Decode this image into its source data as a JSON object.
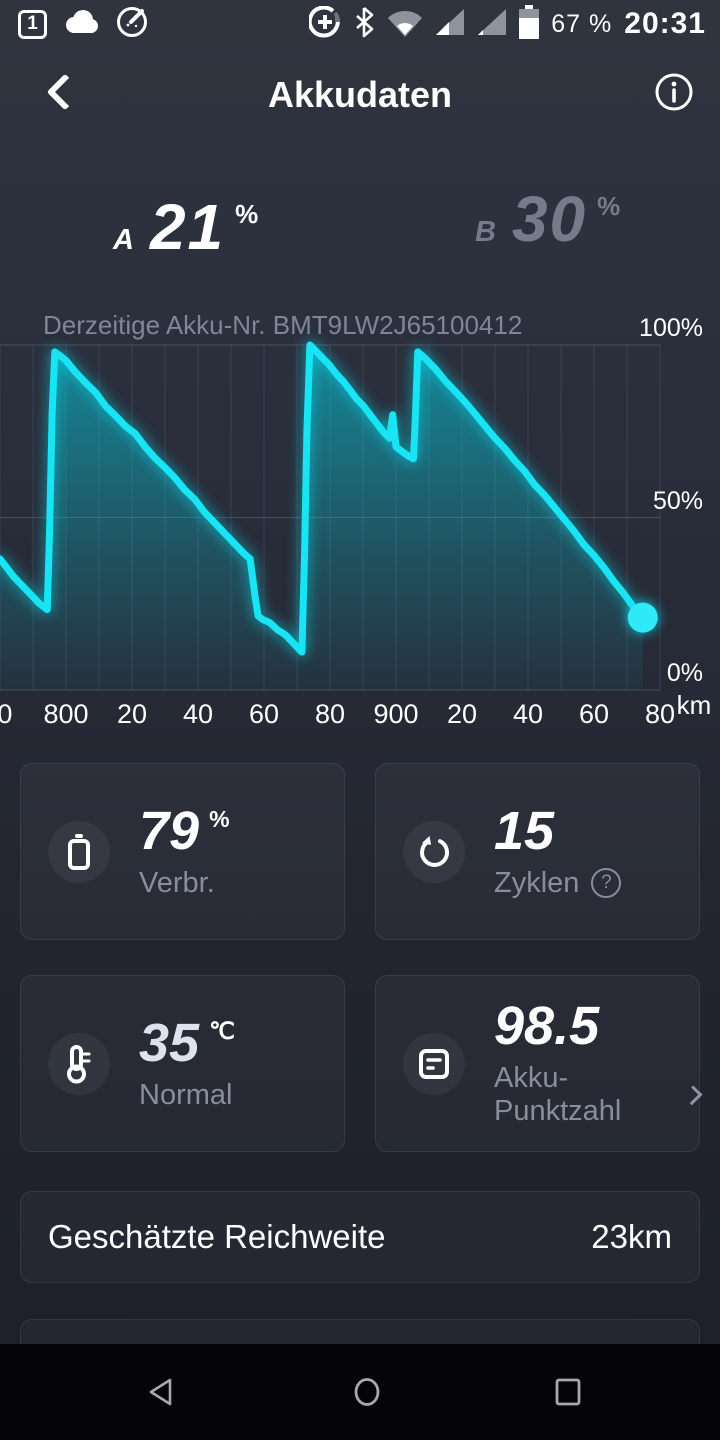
{
  "status_bar": {
    "notification_badge": "1",
    "battery_text": "67 %",
    "time": "20:31",
    "icons_left": [
      "event-badge-icon",
      "cloud-icon",
      "speedometer-icon"
    ],
    "icons_right": [
      "data-saver-icon",
      "bluetooth-icon",
      "wifi-icon",
      "signal-icon",
      "signal2-icon",
      "battery-status-icon"
    ]
  },
  "header": {
    "title": "Akkudaten"
  },
  "summary": {
    "a_label": "A",
    "a_value": "21",
    "a_unit": "%",
    "b_label": "B",
    "b_value": "30",
    "b_unit": "%"
  },
  "chart_caption": "Derzeitige Akku-Nr. BMT9LW2J65100412",
  "chart_data": {
    "type": "area",
    "title": "",
    "x_unit": "km",
    "ylabel": "battery %",
    "x_range": [
      780,
      998
    ],
    "y_range": [
      0,
      100
    ],
    "grid": true,
    "line_color": "#18e4f3",
    "y_ticks": [
      {
        "text": "100%",
        "pct": 100
      },
      {
        "text": "50%",
        "pct": 50
      },
      {
        "text": "0%",
        "pct": 0
      }
    ],
    "x_ticks": [
      {
        "text": "0",
        "km": 781.5
      },
      {
        "text": "800",
        "km": 800
      },
      {
        "text": "20",
        "km": 820
      },
      {
        "text": "40",
        "km": 840
      },
      {
        "text": "60",
        "km": 860
      },
      {
        "text": "80",
        "km": 880
      },
      {
        "text": "900",
        "km": 900
      },
      {
        "text": "20",
        "km": 920
      },
      {
        "text": "40",
        "km": 940
      },
      {
        "text": "60",
        "km": 960
      },
      {
        "text": "80",
        "km": 980
      }
    ],
    "series": [
      {
        "name": "battery_level_pct",
        "points": [
          [
            780,
            38
          ],
          [
            782,
            35.5
          ],
          [
            784,
            33
          ],
          [
            786,
            31
          ],
          [
            788,
            29
          ],
          [
            790,
            27
          ],
          [
            792,
            25
          ],
          [
            793.5,
            24
          ],
          [
            794.3,
            23.3
          ],
          [
            795,
            45
          ],
          [
            795.8,
            80
          ],
          [
            796.6,
            98
          ],
          [
            798,
            97
          ],
          [
            800,
            95.5
          ],
          [
            803,
            92
          ],
          [
            806,
            89
          ],
          [
            809,
            86.2
          ],
          [
            812,
            82.3
          ],
          [
            815,
            79.5
          ],
          [
            818,
            76.5
          ],
          [
            821,
            74.3
          ],
          [
            824,
            70.5
          ],
          [
            827,
            67.2
          ],
          [
            830,
            64.5
          ],
          [
            833,
            61.5
          ],
          [
            836,
            58
          ],
          [
            839,
            55.3
          ],
          [
            842,
            51.5
          ],
          [
            845,
            48.5
          ],
          [
            848,
            45.5
          ],
          [
            851,
            42.5
          ],
          [
            854,
            39.5
          ],
          [
            855.8,
            38
          ],
          [
            856.5,
            33
          ],
          [
            857.3,
            27
          ],
          [
            858.2,
            21.5
          ],
          [
            859.5,
            20.5
          ],
          [
            861.8,
            19.5
          ],
          [
            864,
            17.5
          ],
          [
            866.5,
            16
          ],
          [
            869,
            13.5
          ],
          [
            871.5,
            11
          ],
          [
            872.3,
            40
          ],
          [
            873,
            75
          ],
          [
            873.9,
            100
          ],
          [
            876,
            98
          ],
          [
            878,
            96
          ],
          [
            880,
            94
          ],
          [
            882,
            91.5
          ],
          [
            884,
            89.5
          ],
          [
            886,
            87
          ],
          [
            888,
            84.5
          ],
          [
            890,
            82.5
          ],
          [
            892,
            80
          ],
          [
            894,
            77.5
          ],
          [
            896,
            75
          ],
          [
            898,
            73
          ],
          [
            899,
            79.8
          ],
          [
            900,
            70.5
          ],
          [
            902,
            69
          ],
          [
            903.5,
            68
          ],
          [
            905.3,
            67
          ],
          [
            905.9,
            80
          ],
          [
            906.6,
            98
          ],
          [
            909,
            96
          ],
          [
            912,
            93
          ],
          [
            915,
            89.5
          ],
          [
            918,
            86.5
          ],
          [
            921,
            83.4
          ],
          [
            924,
            80
          ],
          [
            927,
            76.5
          ],
          [
            930,
            73
          ],
          [
            933,
            70
          ],
          [
            936,
            66.5
          ],
          [
            939,
            63.4
          ],
          [
            942,
            59.5
          ],
          [
            945,
            56.5
          ],
          [
            948,
            53
          ],
          [
            951,
            49.5
          ],
          [
            954,
            46
          ],
          [
            957,
            42.1
          ],
          [
            960,
            39
          ],
          [
            963,
            35.5
          ],
          [
            966,
            31.5
          ],
          [
            969,
            28
          ],
          [
            972,
            24
          ],
          [
            974.8,
            21
          ]
        ]
      }
    ]
  },
  "cards": [
    {
      "value": "79",
      "unit": "%",
      "label": "Verbr.",
      "icon": "battery-icon"
    },
    {
      "value": "15",
      "unit": "",
      "label": "Zyklen",
      "icon": "cycles-icon",
      "help_glyph": "?"
    },
    {
      "value": "35",
      "unit": "℃",
      "label": "Normal",
      "icon": "thermometer-icon"
    },
    {
      "value": "98.5",
      "unit": "",
      "label": "Akku-Punktzahl",
      "icon": "report-icon"
    }
  ],
  "range_row": {
    "label": "Geschätzte Reichweite",
    "value": "23km"
  }
}
